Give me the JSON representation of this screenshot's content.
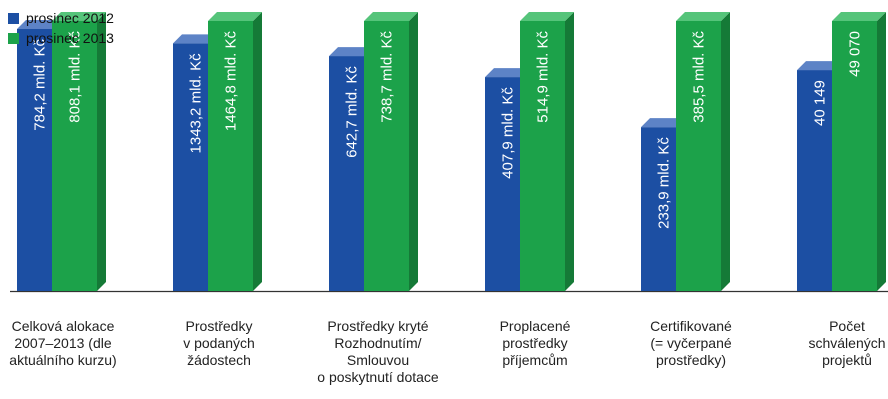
{
  "chart_data": {
    "type": "bar",
    "categories": [
      "Celková alokace\n2007–2013 (dle\naktuálního kurzu)",
      "Prostředky\nv podaných\nžádostech",
      "Prostředky kryté\nRozhodnutím/\nSmlouvou\no poskytnutí dotace",
      "Proplacené\nprostředky\npříjemcům",
      "Certifikované\n(= vyčerpané\nprostředky)",
      "Počet\nschválených\nprojektů"
    ],
    "series": [
      {
        "name": "prosinec 2012",
        "color": "#1c4fa3",
        "values": [
          784.2,
          1343.2,
          642.7,
          407.9,
          233.9,
          40149
        ],
        "labels": [
          "784,2 mld. Kč",
          "1343,2 mld. Kč",
          "642,7 mld. Kč",
          "407,9 mld. Kč",
          "233,9 mld. Kč",
          "40 149"
        ]
      },
      {
        "name": "prosinec 2013",
        "color": "#1ca24a",
        "values": [
          808.1,
          1464.8,
          738.7,
          514.9,
          385.5,
          49070
        ],
        "labels": [
          "808,1 mld. Kč",
          "1464,8 mld. Kč",
          "738,7 mld. Kč",
          "514,9 mld. Kč",
          "385,5 mld. Kč",
          "49 070"
        ]
      }
    ],
    "legend_position": "top-left",
    "grid": false,
    "note": "Each category is scaled independently (values are in different units)."
  }
}
